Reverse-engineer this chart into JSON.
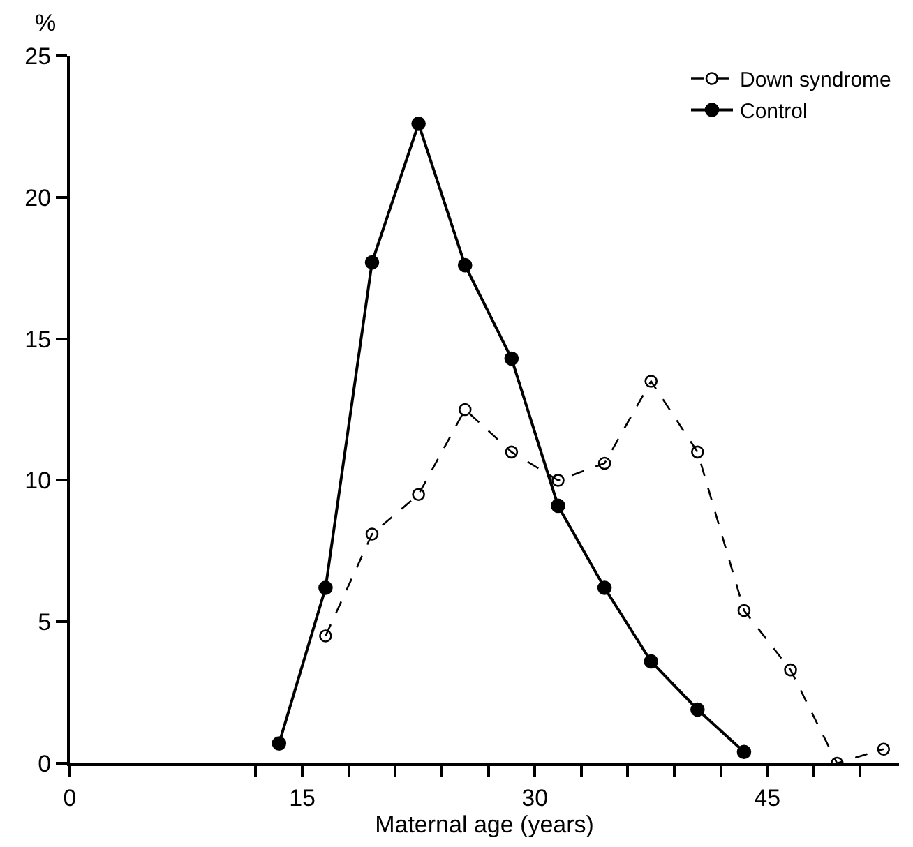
{
  "chart_data": {
    "type": "line",
    "xlabel": "Maternal age (years)",
    "ylabel": "%",
    "xlim": [
      0,
      53.5
    ],
    "ylim": [
      0,
      25
    ],
    "xticks": [
      0,
      {
        "value": 12,
        "label": null
      },
      15,
      {
        "value": 18,
        "label": null
      },
      {
        "value": 21,
        "label": null
      },
      {
        "value": 24,
        "label": null
      },
      {
        "value": 27,
        "label": null
      },
      30,
      {
        "value": 33,
        "label": null
      },
      {
        "value": 36,
        "label": null
      },
      {
        "value": 39,
        "label": null
      },
      {
        "value": 42,
        "label": null
      },
      45,
      {
        "value": 48,
        "label": null
      },
      {
        "value": 51,
        "label": null
      }
    ],
    "yticks": [
      0,
      5,
      10,
      15,
      20,
      25
    ],
    "legend": "top right",
    "marker": "circle",
    "series": [
      {
        "name": "Down syndrome",
        "color": "#000000",
        "line_style": "dashed",
        "x": [
          16.5,
          19.5,
          22.5,
          25.5,
          28.5,
          31.5,
          34.5,
          37.5,
          40.5,
          43.5,
          46.5,
          49.5,
          52.5
        ],
        "values": [
          4.5,
          8.1,
          9.5,
          12.5,
          11.0,
          10.0,
          10.6,
          13.5,
          11.0,
          5.4,
          3.3,
          0,
          0.5
        ]
      },
      {
        "name": "Control",
        "color": "#000000",
        "line_style": "solid",
        "x": [
          13.5,
          16.5,
          19.5,
          22.5,
          25.5,
          28.5,
          31.5,
          34.5,
          37.5,
          40.5,
          43.5
        ],
        "values": [
          0.7,
          6.2,
          17.7,
          22.6,
          17.6,
          14.3,
          9.1,
          6.2,
          3.6,
          1.9,
          0.4
        ]
      }
    ]
  }
}
